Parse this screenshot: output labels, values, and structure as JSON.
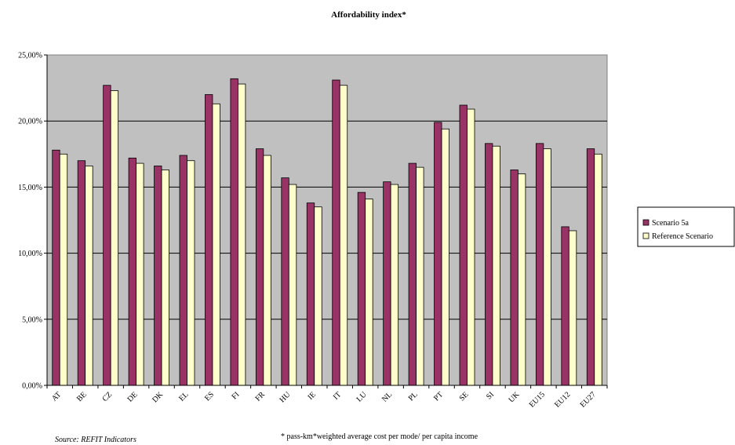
{
  "chart_data": {
    "type": "bar",
    "title": "Affordability index*",
    "categories": [
      "AT",
      "BE",
      "CZ",
      "DE",
      "DK",
      "EL",
      "ES",
      "FI",
      "FR",
      "HU",
      "IE",
      "IT",
      "LU",
      "NL",
      "PL",
      "PT",
      "SE",
      "SI",
      "UK",
      "EU15",
      "EU12",
      "EU27"
    ],
    "series": [
      {
        "name": "Scenario 5a",
        "color": "#993366",
        "values": [
          17.8,
          17.0,
          22.7,
          17.2,
          16.6,
          17.4,
          22.0,
          23.2,
          17.9,
          15.7,
          13.8,
          23.1,
          14.6,
          15.4,
          16.8,
          19.9,
          21.2,
          18.3,
          16.3,
          18.3,
          12.0,
          17.9
        ]
      },
      {
        "name": "Reference Scenario",
        "color": "#FFFFCC",
        "values": [
          17.5,
          16.6,
          22.3,
          16.8,
          16.3,
          17.0,
          21.3,
          22.8,
          17.4,
          15.2,
          13.5,
          22.7,
          14.1,
          15.2,
          16.5,
          19.4,
          20.9,
          18.1,
          16.0,
          17.9,
          11.7,
          17.5
        ]
      }
    ],
    "ylim": [
      0,
      25
    ],
    "yticks": [
      0,
      5,
      10,
      15,
      20,
      25
    ],
    "ytick_labels": [
      "0,00%",
      "5,00%",
      "10,00%",
      "15,00%",
      "20,00%",
      "25,00%"
    ],
    "plot_background": "#C0C0C0",
    "grid": true,
    "legend_position": "right"
  },
  "footer": {
    "source": "Source: REFIT Indicators",
    "note": "* pass-km*weighted average cost per mode/ per capita income"
  }
}
